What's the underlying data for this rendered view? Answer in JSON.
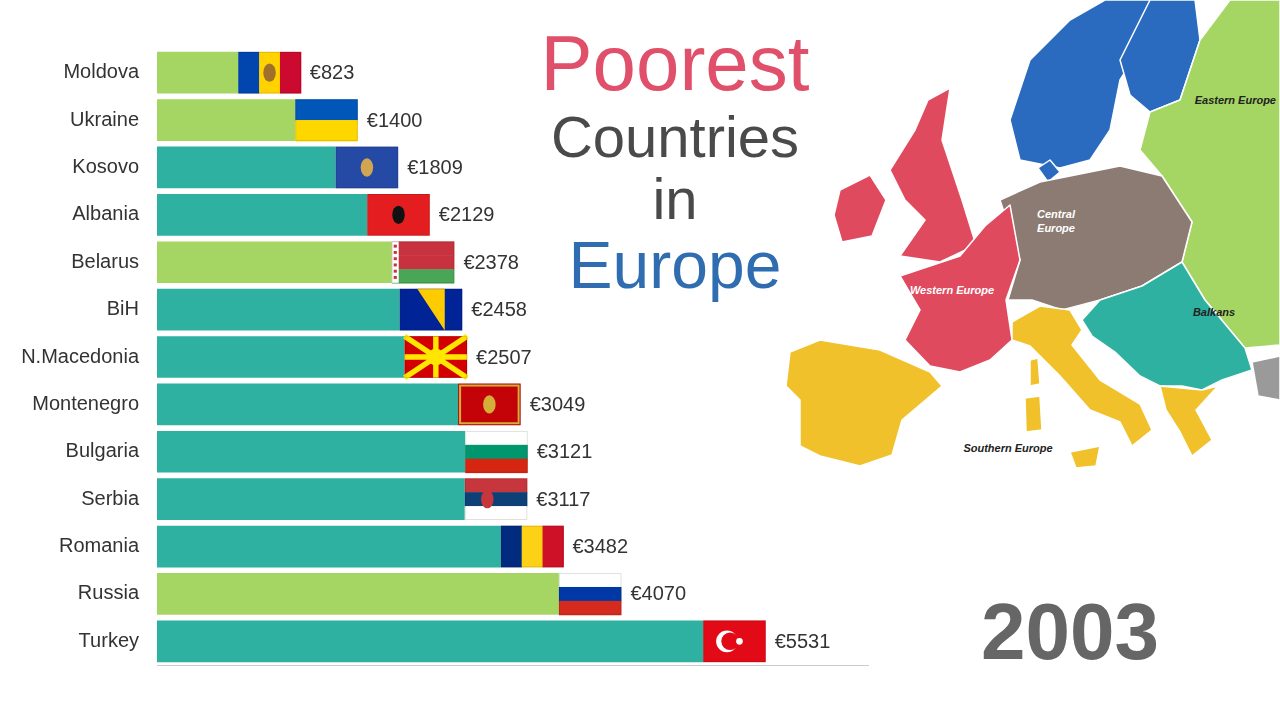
{
  "chart_data": {
    "type": "bar",
    "title": "Poorest Countries in Europe",
    "orientation": "horizontal",
    "categories": [
      "Moldova",
      "Ukraine",
      "Kosovo",
      "Albania",
      "Belarus",
      "BiH",
      "N.Macedonia",
      "Montenegro",
      "Bulgaria",
      "Serbia",
      "Romania",
      "Russia",
      "Turkey"
    ],
    "values": [
      823,
      1400,
      1809,
      2129,
      2378,
      2458,
      2507,
      3049,
      3121,
      3117,
      3482,
      4070,
      5531
    ],
    "value_labels": [
      "€823",
      "€1400",
      "€1809",
      "€2129",
      "€2378",
      "€2458",
      "€2507",
      "€3049",
      "€3121",
      "€3117",
      "€3482",
      "€4070",
      "€5531"
    ],
    "colors": [
      "#a5d563",
      "#a5d563",
      "#2eb1a0",
      "#2eb1a0",
      "#a5d563",
      "#2eb1a0",
      "#2eb1a0",
      "#2eb1a0",
      "#2eb1a0",
      "#2eb1a0",
      "#2eb1a0",
      "#a5d563",
      "#2eb1a0"
    ],
    "xlim": [
      0,
      7200
    ],
    "grid": false,
    "legend": "none",
    "data_labels": true,
    "tick_labels": "y",
    "annotations": [
      "2003"
    ]
  },
  "map": {
    "regions": [
      {
        "label": "Eastern Europe",
        "color": "#a5d563"
      },
      {
        "label": "Central Europe",
        "color": "#8c7b72"
      },
      {
        "label": "Western Europe",
        "color": "#e04a5f"
      },
      {
        "label": "Balkans",
        "color": "#2eb1a0"
      },
      {
        "label": "Southern Europe",
        "color": "#f1c12b"
      }
    ]
  }
}
